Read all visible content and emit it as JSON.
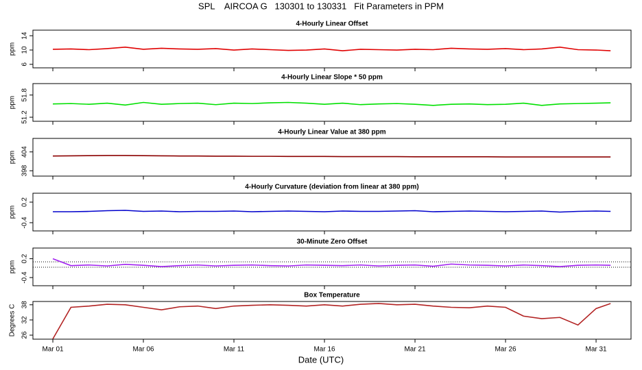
{
  "title": "SPL    AIRCOA G   130301 to 130331   Fit Parameters in PPM",
  "x_label": "Date (UTC)",
  "xlim": [
    -0.1,
    32.93
  ],
  "xticks": [
    {
      "value": 1,
      "label": "Mar 01"
    },
    {
      "value": 6,
      "label": "Mar 06"
    },
    {
      "value": 11,
      "label": "Mar 11"
    },
    {
      "value": 16,
      "label": "Mar 16"
    },
    {
      "value": 21,
      "label": "Mar 21"
    },
    {
      "value": 26,
      "label": "Mar 26"
    },
    {
      "value": 31,
      "label": "Mar 31"
    }
  ],
  "chart_data": [
    {
      "type": "line",
      "title": "4-Hourly Linear Offset",
      "y_label": "ppm",
      "ylim": [
        5.02,
        15.56
      ],
      "yticks": [
        6,
        10,
        14
      ],
      "x": [
        1,
        2,
        3,
        4,
        5,
        6,
        7,
        8,
        9,
        10,
        11,
        12,
        13,
        14,
        15,
        16,
        17,
        18,
        19,
        20,
        21,
        22,
        23,
        24,
        25,
        26,
        27,
        28,
        29,
        30,
        31,
        31.8
      ],
      "series": [
        {
          "color": "#e00000",
          "values": [
            10.2,
            10.3,
            10.1,
            10.4,
            10.8,
            10.2,
            10.5,
            10.3,
            10.2,
            10.4,
            10.0,
            10.3,
            10.1,
            9.9,
            10.0,
            10.3,
            9.8,
            10.2,
            10.1,
            10.0,
            10.2,
            10.1,
            10.5,
            10.3,
            10.2,
            10.4,
            10.1,
            10.3,
            10.8,
            10.1,
            10.0,
            9.8
          ]
        }
      ]
    },
    {
      "type": "line",
      "title": "4-Hourly Linear Slope * 50 ppm",
      "y_label": "ppm",
      "ylim": [
        51.09,
        52.11
      ],
      "yticks": [
        51.2,
        51.8
      ],
      "x": [
        1,
        2,
        3,
        4,
        5,
        6,
        7,
        8,
        9,
        10,
        11,
        12,
        13,
        14,
        15,
        16,
        17,
        18,
        19,
        20,
        21,
        22,
        23,
        24,
        25,
        26,
        27,
        28,
        29,
        30,
        31,
        31.8
      ],
      "series": [
        {
          "color": "#00e000",
          "values": [
            51.56,
            51.57,
            51.55,
            51.58,
            51.53,
            51.6,
            51.55,
            51.57,
            51.58,
            51.54,
            51.58,
            51.57,
            51.59,
            51.6,
            51.58,
            51.55,
            51.58,
            51.54,
            51.56,
            51.57,
            51.55,
            51.52,
            51.55,
            51.56,
            51.54,
            51.55,
            51.58,
            51.52,
            51.56,
            51.57,
            51.58,
            51.59
          ]
        }
      ]
    },
    {
      "type": "line",
      "title": "4-Hourly Linear Value at 380 ppm",
      "y_label": "ppm",
      "ylim": [
        396.3,
        408.3
      ],
      "yticks": [
        398,
        404
      ],
      "x": [
        1,
        2,
        3,
        4,
        5,
        6,
        7,
        8,
        9,
        10,
        11,
        12,
        13,
        14,
        15,
        16,
        17,
        18,
        19,
        20,
        21,
        22,
        23,
        24,
        25,
        26,
        27,
        28,
        29,
        30,
        31,
        31.8
      ],
      "series": [
        {
          "color": "#8b0000",
          "values": [
            402.7,
            402.75,
            402.8,
            402.85,
            402.85,
            402.8,
            402.75,
            402.7,
            402.7,
            402.65,
            402.65,
            402.6,
            402.6,
            402.55,
            402.55,
            402.55,
            402.5,
            402.5,
            402.5,
            402.5,
            402.45,
            402.45,
            402.45,
            402.45,
            402.45,
            402.4,
            402.4,
            402.4,
            402.4,
            402.4,
            402.4,
            402.4
          ]
        }
      ]
    },
    {
      "type": "line",
      "title": "4-Hourly Curvature (deviation from linear at 380 ppm)",
      "y_label": "ppm",
      "ylim": [
        -0.64,
        0.46
      ],
      "yticks": [
        -0.4,
        0.2
      ],
      "x": [
        1,
        2,
        3,
        4,
        5,
        6,
        7,
        8,
        9,
        10,
        11,
        12,
        13,
        14,
        15,
        16,
        17,
        18,
        19,
        20,
        21,
        22,
        23,
        24,
        25,
        26,
        27,
        28,
        29,
        30,
        31,
        31.8
      ],
      "series": [
        {
          "color": "#0000cc",
          "values": [
            -0.08,
            -0.08,
            -0.07,
            -0.05,
            -0.04,
            -0.07,
            -0.06,
            -0.08,
            -0.07,
            -0.07,
            -0.06,
            -0.08,
            -0.07,
            -0.06,
            -0.07,
            -0.08,
            -0.06,
            -0.07,
            -0.07,
            -0.06,
            -0.05,
            -0.08,
            -0.07,
            -0.06,
            -0.07,
            -0.08,
            -0.07,
            -0.06,
            -0.09,
            -0.07,
            -0.06,
            -0.07
          ]
        }
      ]
    },
    {
      "type": "line",
      "title": "30-Minute Zero Offset",
      "y_label": "ppm",
      "ylim": [
        -0.66,
        0.54
      ],
      "yticks": [
        -0.4,
        0.2
      ],
      "hlines": [
        0.1,
        -0.07
      ],
      "x": [
        1,
        2,
        3,
        4,
        5,
        6,
        7,
        8,
        9,
        10,
        11,
        12,
        13,
        14,
        15,
        16,
        17,
        18,
        19,
        20,
        21,
        22,
        23,
        24,
        25,
        26,
        27,
        28,
        29,
        30,
        31,
        31.8
      ],
      "series": [
        {
          "color": "#a020f0",
          "values": [
            0.2,
            -0.02,
            0.0,
            -0.03,
            0.02,
            -0.01,
            -0.05,
            -0.02,
            0.0,
            -0.03,
            -0.01,
            0.0,
            -0.02,
            -0.03,
            0.0,
            -0.01,
            -0.02,
            0.0,
            -0.03,
            -0.01,
            0.0,
            -0.04,
            0.03,
            0.0,
            -0.01,
            -0.03,
            0.0,
            -0.02,
            -0.05,
            -0.01,
            0.0,
            -0.01
          ]
        }
      ]
    },
    {
      "type": "line",
      "title": "Box Temperature",
      "y_label": "Degrees C",
      "ylim": [
        24.4,
        39.3
      ],
      "yticks": [
        26,
        32,
        38
      ],
      "x": [
        1,
        2,
        3,
        4,
        5,
        6,
        7,
        8,
        9,
        10,
        11,
        12,
        13,
        14,
        15,
        16,
        17,
        18,
        19,
        20,
        21,
        22,
        23,
        24,
        25,
        26,
        27,
        28,
        29,
        30,
        31,
        31.8
      ],
      "series": [
        {
          "color": "#b22222",
          "values": [
            24.5,
            37,
            37.5,
            38.2,
            38,
            37,
            36,
            37.2,
            37.5,
            36.5,
            37.5,
            37.8,
            38,
            37.8,
            37.5,
            38,
            37.5,
            38.2,
            38.5,
            38,
            38.2,
            37.5,
            37,
            36.8,
            37.5,
            37,
            33.5,
            32.5,
            33,
            30,
            36.5,
            38.5
          ]
        }
      ]
    }
  ]
}
